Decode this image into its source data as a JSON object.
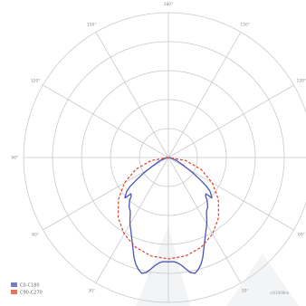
{
  "chart_data": {
    "type": "polar-line",
    "title": "",
    "angle_labels": [
      "180°",
      "150°",
      "120°",
      "90°",
      "60°",
      "30°",
      "0°",
      "30°",
      "60°",
      "90°",
      "120°",
      "150°"
    ],
    "angle_positions_deg": [
      180,
      150,
      120,
      90,
      60,
      30,
      0,
      -30,
      -60,
      -90,
      -120,
      -150
    ],
    "radial_max": 1.0,
    "radial_ticks": [
      0.2,
      0.4,
      0.6,
      0.8,
      1.0
    ],
    "radial_tick_labels": [
      "",
      "",
      "",
      "",
      ""
    ],
    "grid": true,
    "legend_position": "bottom-left",
    "corner_label": "cd/1000lm",
    "series": [
      {
        "name": "C0-C180",
        "color": "#4a55b5",
        "style": "solid",
        "points": [
          {
            "angle": -90,
            "r": 0.0
          },
          {
            "angle": -80,
            "r": 0.02
          },
          {
            "angle": -70,
            "r": 0.06
          },
          {
            "angle": -62,
            "r": 0.12
          },
          {
            "angle": -58,
            "r": 0.2
          },
          {
            "angle": -55,
            "r": 0.27
          },
          {
            "angle": -53,
            "r": 0.33
          },
          {
            "angle": -51,
            "r": 0.37
          },
          {
            "angle": -49,
            "r": 0.39
          },
          {
            "angle": -47,
            "r": 0.41
          },
          {
            "angle": -46,
            "r": 0.36
          },
          {
            "angle": -44,
            "r": 0.37
          },
          {
            "angle": -42,
            "r": 0.4
          },
          {
            "angle": -40,
            "r": 0.42
          },
          {
            "angle": -38,
            "r": 0.44
          },
          {
            "angle": -36,
            "r": 0.45
          },
          {
            "angle": -34,
            "r": 0.47
          },
          {
            "angle": -32,
            "r": 0.5
          },
          {
            "angle": -30,
            "r": 0.53
          },
          {
            "angle": -27,
            "r": 0.57
          },
          {
            "angle": -24,
            "r": 0.62
          },
          {
            "angle": -21,
            "r": 0.68
          },
          {
            "angle": -19,
            "r": 0.73
          },
          {
            "angle": -17,
            "r": 0.77
          },
          {
            "angle": -15,
            "r": 0.8
          },
          {
            "angle": -13,
            "r": 0.82
          },
          {
            "angle": -11,
            "r": 0.81
          },
          {
            "angle": -9,
            "r": 0.78
          },
          {
            "angle": -7,
            "r": 0.75
          },
          {
            "angle": -5,
            "r": 0.73
          },
          {
            "angle": -3,
            "r": 0.72
          },
          {
            "angle": 0,
            "r": 0.72
          },
          {
            "angle": 3,
            "r": 0.72
          },
          {
            "angle": 5,
            "r": 0.73
          },
          {
            "angle": 7,
            "r": 0.75
          },
          {
            "angle": 9,
            "r": 0.78
          },
          {
            "angle": 11,
            "r": 0.81
          },
          {
            "angle": 13,
            "r": 0.82
          },
          {
            "angle": 15,
            "r": 0.8
          },
          {
            "angle": 17,
            "r": 0.77
          },
          {
            "angle": 19,
            "r": 0.73
          },
          {
            "angle": 21,
            "r": 0.68
          },
          {
            "angle": 24,
            "r": 0.62
          },
          {
            "angle": 27,
            "r": 0.57
          },
          {
            "angle": 30,
            "r": 0.53
          },
          {
            "angle": 32,
            "r": 0.5
          },
          {
            "angle": 34,
            "r": 0.47
          },
          {
            "angle": 36,
            "r": 0.45
          },
          {
            "angle": 38,
            "r": 0.44
          },
          {
            "angle": 40,
            "r": 0.42
          },
          {
            "angle": 42,
            "r": 0.4
          },
          {
            "angle": 44,
            "r": 0.37
          },
          {
            "angle": 46,
            "r": 0.36
          },
          {
            "angle": 47,
            "r": 0.41
          },
          {
            "angle": 49,
            "r": 0.39
          },
          {
            "angle": 51,
            "r": 0.37
          },
          {
            "angle": 53,
            "r": 0.33
          },
          {
            "angle": 55,
            "r": 0.27
          },
          {
            "angle": 58,
            "r": 0.2
          },
          {
            "angle": 62,
            "r": 0.12
          },
          {
            "angle": 70,
            "r": 0.06
          },
          {
            "angle": 80,
            "r": 0.02
          },
          {
            "angle": 90,
            "r": 0.0
          }
        ]
      },
      {
        "name": "C90-C270",
        "color": "#d9452e",
        "style": "dashed",
        "points": [
          {
            "angle": -90,
            "r": 0.0
          },
          {
            "angle": -80,
            "r": 0.12
          },
          {
            "angle": -70,
            "r": 0.24
          },
          {
            "angle": -60,
            "r": 0.35
          },
          {
            "angle": -50,
            "r": 0.45
          },
          {
            "angle": -40,
            "r": 0.54
          },
          {
            "angle": -30,
            "r": 0.61
          },
          {
            "angle": -20,
            "r": 0.66
          },
          {
            "angle": -10,
            "r": 0.69
          },
          {
            "angle": 0,
            "r": 0.7
          },
          {
            "angle": 10,
            "r": 0.69
          },
          {
            "angle": 20,
            "r": 0.66
          },
          {
            "angle": 30,
            "r": 0.61
          },
          {
            "angle": 40,
            "r": 0.54
          },
          {
            "angle": 50,
            "r": 0.45
          },
          {
            "angle": 60,
            "r": 0.35
          },
          {
            "angle": 70,
            "r": 0.24
          },
          {
            "angle": 80,
            "r": 0.12
          },
          {
            "angle": 90,
            "r": 0.0
          }
        ]
      }
    ]
  }
}
